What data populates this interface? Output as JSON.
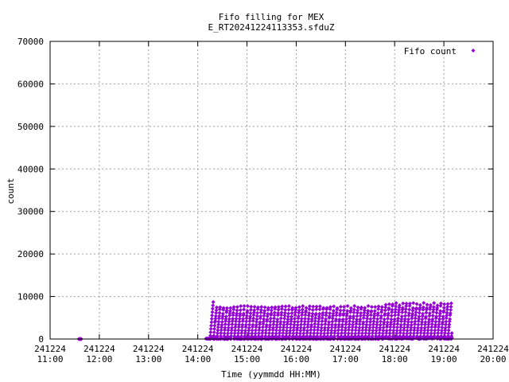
{
  "chart_data": {
    "type": "scatter",
    "title": "Fifo filling for MEX",
    "subtitle": "E_RT20241224113353.sfduZ",
    "xlabel": "Time (yymmdd HH:MM)",
    "ylabel": "count",
    "ylim": [
      0,
      70000
    ],
    "xlim": [
      "2024-12-24 11:00",
      "2024-12-24 20:00"
    ],
    "y_ticks": [
      "0",
      "10000",
      "20000",
      "30000",
      "40000",
      "50000",
      "60000",
      "70000"
    ],
    "x_ticks": [
      {
        "date": "241224",
        "time": "11:00"
      },
      {
        "date": "241224",
        "time": "12:00"
      },
      {
        "date": "241224",
        "time": "13:00"
      },
      {
        "date": "241224",
        "time": "14:00"
      },
      {
        "date": "241224",
        "time": "15:00"
      },
      {
        "date": "241224",
        "time": "16:00"
      },
      {
        "date": "241224",
        "time": "17:00"
      },
      {
        "date": "241224",
        "time": "18:00"
      },
      {
        "date": "241224",
        "time": "19:00"
      },
      {
        "date": "241224",
        "time": "20:00"
      }
    ],
    "grid": true,
    "legend_position": "top-right",
    "series": [
      {
        "name": "Fifo count",
        "color": "#9400d3",
        "marker": "diamond",
        "segments": [
          {
            "start": "2024-12-24 11:35",
            "end": "2024-12-24 11:38",
            "min": 0,
            "max": 0
          },
          {
            "start": "2024-12-24 14:10",
            "end": "2024-12-24 14:15",
            "min": 0,
            "max": 200
          },
          {
            "start": "2024-12-24 14:15",
            "end": "2024-12-24 19:10",
            "min": 0,
            "max": 9500,
            "typical_max": 8500
          }
        ]
      }
    ]
  }
}
